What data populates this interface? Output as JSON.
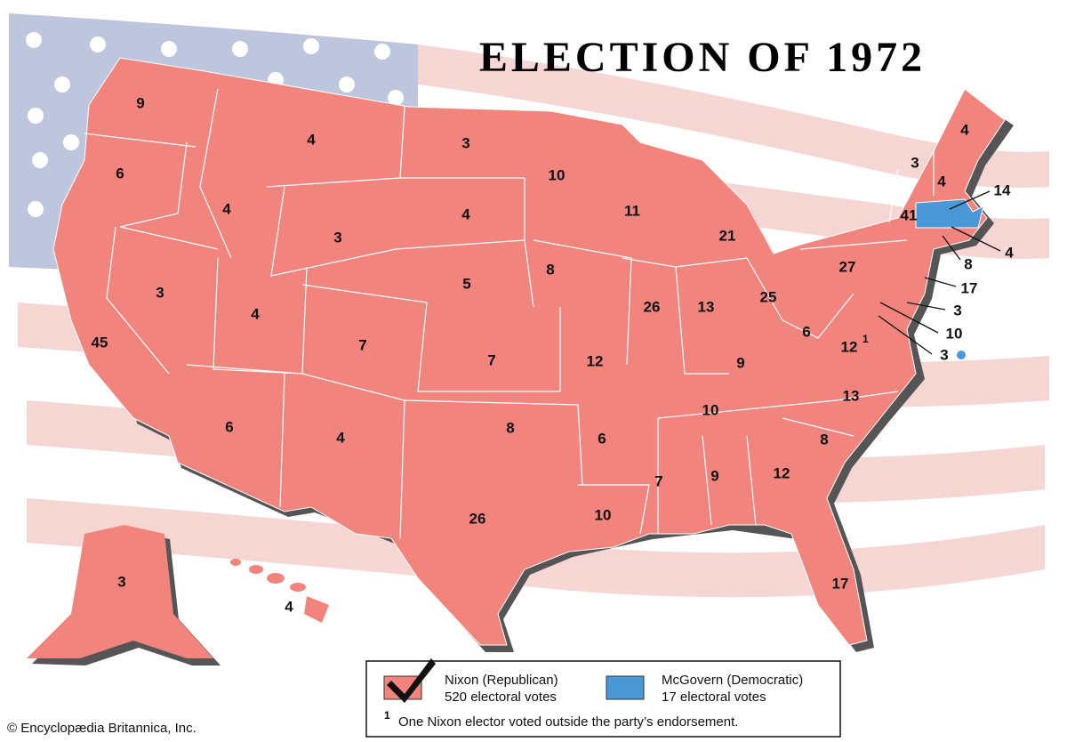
{
  "header": {
    "title": "ELECTION OF 1972"
  },
  "states": [
    {
      "votes": 9
    },
    {
      "votes": 6
    },
    {
      "votes": 45
    },
    {
      "votes": 3
    },
    {
      "votes": 4
    },
    {
      "votes": 4
    },
    {
      "votes": 3
    },
    {
      "votes": 4
    },
    {
      "votes": 7
    },
    {
      "votes": 6
    },
    {
      "votes": 4
    },
    {
      "votes": 3
    },
    {
      "votes": 4
    },
    {
      "votes": 5
    },
    {
      "votes": 7
    },
    {
      "votes": 8
    },
    {
      "votes": 26
    },
    {
      "votes": 10
    },
    {
      "votes": 8
    },
    {
      "votes": 12
    },
    {
      "votes": 6
    },
    {
      "votes": 10
    },
    {
      "votes": 11
    },
    {
      "votes": 26
    },
    {
      "votes": 21
    },
    {
      "votes": 13
    },
    {
      "votes": 25
    },
    {
      "votes": 9
    },
    {
      "votes": 10
    },
    {
      "votes": 7
    },
    {
      "votes": 9
    },
    {
      "votes": 12
    },
    {
      "votes": 17
    },
    {
      "votes": 8
    },
    {
      "votes": 13
    },
    {
      "votes": 12
    },
    {
      "votes": 6
    },
    {
      "votes": 27
    },
    {
      "votes": 41
    },
    {
      "votes": 3
    },
    {
      "votes": 4
    },
    {
      "votes": 4
    },
    {
      "votes": 14
    },
    {
      "votes": 4
    },
    {
      "votes": 8
    },
    {
      "votes": 17
    },
    {
      "votes": 3
    },
    {
      "votes": 10
    },
    {
      "votes": 3
    },
    {
      "votes": 3
    },
    {
      "votes": 4
    }
  ],
  "legend": [
    {
      "name": "Nixon (Republican)",
      "detail": "520 electoral votes",
      "color": "#f2847e"
    },
    {
      "name": "McGovern (Democratic)",
      "detail": "17 electoral votes",
      "color": "#4a98d6"
    }
  ],
  "footnote": {
    "marker": "1",
    "text": "One Nixon elector voted outside the party’s endorsement."
  },
  "credit": "© Encyclopædia Britannica, Inc."
}
